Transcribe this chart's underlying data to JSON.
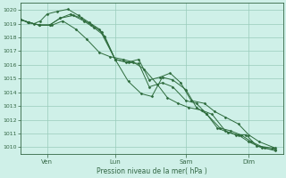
{
  "title": "Pression niveau de la mer( hPa )",
  "bg_color": "#cff0e8",
  "grid_color": "#99ccbb",
  "line_color": "#2d6b3c",
  "spine_color": "#336644",
  "ylim": [
    1009.5,
    1020.5
  ],
  "yticks": [
    1010,
    1011,
    1012,
    1013,
    1014,
    1015,
    1016,
    1017,
    1018,
    1019,
    1020
  ],
  "xtick_labels": [
    "Ven",
    "Lun",
    "Sam",
    "Dim"
  ],
  "xtick_positions": [
    0.1,
    0.36,
    0.63,
    0.87
  ],
  "series": [
    {
      "x": [
        0.0,
        0.025,
        0.05,
        0.075,
        0.1,
        0.14,
        0.18,
        0.22,
        0.26,
        0.3,
        0.36,
        0.41,
        0.46,
        0.5,
        0.54,
        0.58,
        0.63,
        0.67,
        0.71,
        0.75,
        0.79,
        0.83,
        0.87,
        0.92,
        0.97
      ],
      "y": [
        1019.3,
        1019.1,
        1019.0,
        1019.2,
        1019.7,
        1019.9,
        1020.05,
        1019.6,
        1019.1,
        1018.6,
        1016.4,
        1014.8,
        1013.9,
        1013.7,
        1015.1,
        1014.9,
        1014.2,
        1012.9,
        1012.4,
        1011.4,
        1011.1,
        1010.9,
        1010.4,
        1009.95,
        1009.85
      ]
    },
    {
      "x": [
        0.0,
        0.03,
        0.07,
        0.11,
        0.15,
        0.19,
        0.23,
        0.27,
        0.31,
        0.36,
        0.4,
        0.45,
        0.49,
        0.54,
        0.58,
        0.63,
        0.67,
        0.71,
        0.76,
        0.8,
        0.84,
        0.88,
        0.93,
        0.97
      ],
      "y": [
        1019.3,
        1019.1,
        1018.9,
        1018.9,
        1019.4,
        1019.7,
        1019.4,
        1018.9,
        1018.4,
        1016.4,
        1016.2,
        1016.1,
        1014.4,
        1014.7,
        1014.4,
        1013.4,
        1013.2,
        1012.4,
        1011.4,
        1011.2,
        1010.9,
        1010.4,
        1009.95,
        1009.75
      ]
    },
    {
      "x": [
        0.0,
        0.03,
        0.07,
        0.11,
        0.15,
        0.2,
        0.24,
        0.28,
        0.32,
        0.36,
        0.41,
        0.45,
        0.49,
        0.53,
        0.57,
        0.61,
        0.65,
        0.7,
        0.74,
        0.78,
        0.83,
        0.87,
        0.91,
        0.97
      ],
      "y": [
        1019.3,
        1019.1,
        1018.9,
        1018.9,
        1019.4,
        1019.6,
        1019.2,
        1018.7,
        1018.1,
        1016.4,
        1016.2,
        1016.4,
        1014.9,
        1015.1,
        1015.4,
        1014.7,
        1013.4,
        1013.2,
        1012.6,
        1012.2,
        1011.7,
        1010.9,
        1010.4,
        1009.95
      ]
    },
    {
      "x": [
        0.0,
        0.03,
        0.07,
        0.12,
        0.16,
        0.21,
        0.25,
        0.3,
        0.34,
        0.39,
        0.43,
        0.47,
        0.52,
        0.56,
        0.6,
        0.64,
        0.69,
        0.73,
        0.78,
        0.82,
        0.86,
        0.9,
        0.96
      ],
      "y": [
        1019.3,
        1019.1,
        1018.9,
        1018.9,
        1019.2,
        1018.6,
        1017.9,
        1016.9,
        1016.6,
        1016.4,
        1016.2,
        1015.7,
        1014.6,
        1013.6,
        1013.2,
        1012.9,
        1012.7,
        1012.4,
        1011.2,
        1010.9,
        1010.9,
        1010.1,
        1009.95
      ]
    }
  ]
}
